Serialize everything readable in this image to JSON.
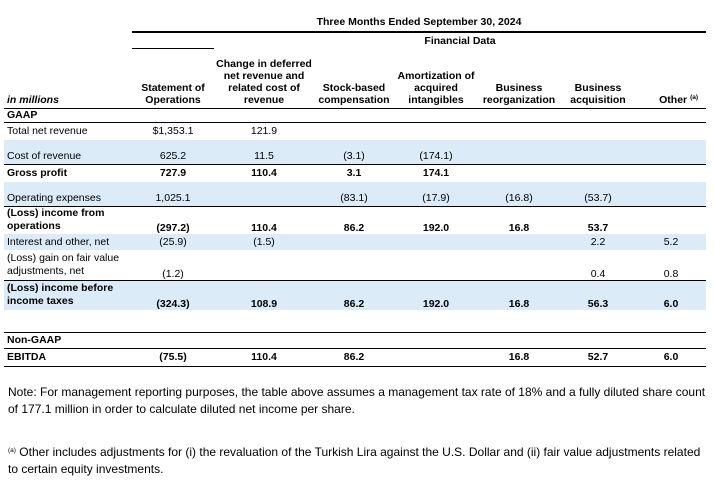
{
  "table": {
    "period_header": "Three Months Ended September 30, 2024",
    "group_header": "Financial Data",
    "units_label": "in millions",
    "columns": [
      "Statement of Operations",
      "Change in deferred net revenue and related cost of revenue",
      "Stock-based compensation",
      "Amortization of acquired intangibles",
      "Business reorganization",
      "Business acquisition",
      "Other"
    ],
    "other_footnote_marker": "(a)",
    "gaap_label": "GAAP",
    "nongaap_label": "Non-GAAP",
    "rows": {
      "total_net_revenue": {
        "label": "Total net revenue",
        "values": [
          "$1,353.1",
          "121.9",
          "",
          "",
          "",
          "",
          ""
        ]
      },
      "cost_of_revenue": {
        "label": "Cost of revenue",
        "values": [
          "625.2",
          "11.5",
          "(3.1)",
          "(174.1)",
          "",
          "",
          ""
        ]
      },
      "gross_profit": {
        "label": "Gross profit",
        "values": [
          "727.9",
          "110.4",
          "3.1",
          "174.1",
          "",
          "",
          ""
        ]
      },
      "operating_expenses": {
        "label": "Operating expenses",
        "values": [
          "1,025.1",
          "",
          "(83.1)",
          "(17.9)",
          "(16.8)",
          "(53.7)",
          ""
        ]
      },
      "income_from_operations": {
        "label_line1": "(Loss) income from",
        "label_line2": "operations",
        "values": [
          "(297.2)",
          "110.4",
          "86.2",
          "192.0",
          "16.8",
          "53.7",
          ""
        ]
      },
      "interest_other": {
        "label": "Interest and other, net",
        "values": [
          "(25.9)",
          "(1.5)",
          "",
          "",
          "",
          "2.2",
          "5.2"
        ]
      },
      "fair_value": {
        "label_line1": "(Loss) gain on fair value",
        "label_line2": "adjustments, net",
        "values": [
          "(1.2)",
          "",
          "",
          "",
          "",
          "0.4",
          "0.8"
        ]
      },
      "income_before_taxes": {
        "label_line1": "(Loss) income before",
        "label_line2": "income taxes",
        "values": [
          "(324.3)",
          "108.9",
          "86.2",
          "192.0",
          "16.8",
          "56.3",
          "6.0"
        ]
      },
      "ebitda": {
        "label": "EBITDA",
        "values": [
          "(75.5)",
          "110.4",
          "86.2",
          "",
          "16.8",
          "52.7",
          "6.0"
        ]
      }
    }
  },
  "notes": {
    "main": "Note: For management reporting purposes, the table above assumes a management tax rate of 18% and a fully diluted share count of 177.1 million in order to calculate diluted net income per share.",
    "footnote_marker": "(a)",
    "footnote": "Other includes adjustments for (i) the revaluation of the Turkish Lira against the U.S. Dollar and (ii) fair value adjustments related to certain equity investments."
  },
  "colors": {
    "row_highlight": "#dcebf8",
    "rule": "#000000"
  }
}
